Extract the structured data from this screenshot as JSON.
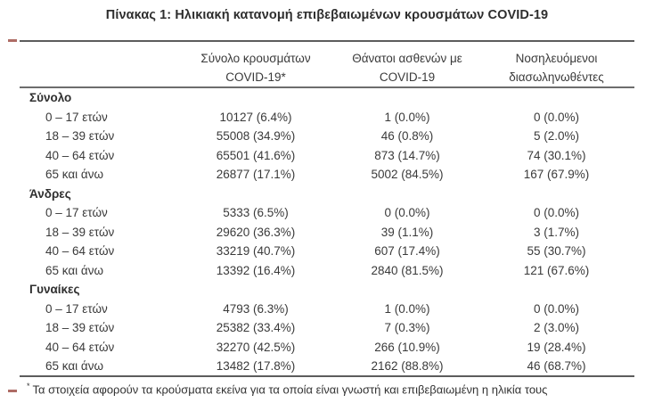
{
  "title": "Πίνακας 1: Ηλικιακή κατανομή επιβεβαιωμένων κρουσμάτων COVID-19",
  "colors": {
    "rule": "#5c5c5c",
    "text": "#3a3a3a",
    "left_tick": "#a0524a"
  },
  "table": {
    "headers": {
      "cases_line1": "Σύνολο κρουσμάτων",
      "cases_line2": "COVID-19*",
      "deaths_line1": "Θάνατοι ασθενών με",
      "deaths_line2": "COVID-19",
      "intubated_line1": "Νοσηλευόμενοι",
      "intubated_line2": "διασωληνωθέντες"
    },
    "sections": [
      {
        "label": "Σύνολο",
        "rows": [
          {
            "age": "0 – 17 ετών",
            "cases": "10127 (6.4%)",
            "deaths": "1 (0.0%)",
            "intubated": "0 (0.0%)"
          },
          {
            "age": "18 – 39 ετών",
            "cases": "55008 (34.9%)",
            "deaths": "46 (0.8%)",
            "intubated": "5 (2.0%)"
          },
          {
            "age": "40 – 64 ετών",
            "cases": "65501 (41.6%)",
            "deaths": "873 (14.7%)",
            "intubated": "74 (30.1%)"
          },
          {
            "age": "65 και άνω",
            "cases": "26877 (17.1%)",
            "deaths": "5002 (84.5%)",
            "intubated": "167 (67.9%)"
          }
        ]
      },
      {
        "label": "Άνδρες",
        "rows": [
          {
            "age": "0 – 17 ετών",
            "cases": "5333 (6.5%)",
            "deaths": "0 (0.0%)",
            "intubated": "0 (0.0%)"
          },
          {
            "age": "18 – 39 ετών",
            "cases": "29620 (36.3%)",
            "deaths": "39 (1.1%)",
            "intubated": "3 (1.7%)"
          },
          {
            "age": "40 – 64 ετών",
            "cases": "33219 (40.7%)",
            "deaths": "607 (17.4%)",
            "intubated": "55 (30.7%)"
          },
          {
            "age": "65 και άνω",
            "cases": "13392 (16.4%)",
            "deaths": "2840 (81.5%)",
            "intubated": "121 (67.6%)"
          }
        ]
      },
      {
        "label": "Γυναίκες",
        "rows": [
          {
            "age": "0 – 17 ετών",
            "cases": "4793 (6.3%)",
            "deaths": "1 (0.0%)",
            "intubated": "0 (0.0%)"
          },
          {
            "age": "18 – 39 ετών",
            "cases": "25382 (33.4%)",
            "deaths": "7 (0.3%)",
            "intubated": "2 (3.0%)"
          },
          {
            "age": "40 – 64 ετών",
            "cases": "32270 (42.5%)",
            "deaths": "266 (10.9%)",
            "intubated": "19 (28.4%)"
          },
          {
            "age": "65 και άνω",
            "cases": "13482 (17.8%)",
            "deaths": "2162 (88.8%)",
            "intubated": "46 (68.7%)"
          }
        ]
      }
    ]
  },
  "footnote": {
    "marker": "*",
    "text": "Τα στοιχεία αφορούν τα κρούσματα εκείνα για τα οποία είναι γνωστή και επιβεβαιωμένη η ηλικία τους"
  }
}
